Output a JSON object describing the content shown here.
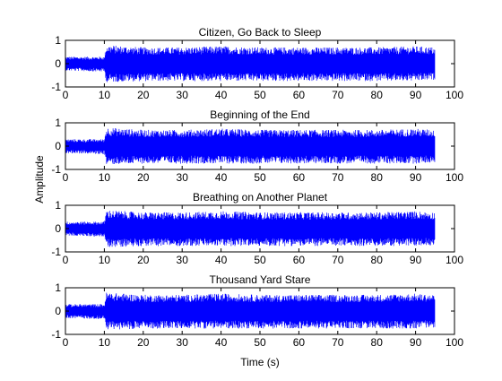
{
  "figure": {
    "xlabel": "Time (s)",
    "ylabel": "Amplitude"
  },
  "chart_data": [
    {
      "type": "line",
      "title": "Citizen, Go Back to Sleep",
      "xlim": [
        0,
        100
      ],
      "ylim": [
        -1,
        1
      ],
      "xticks": [
        0,
        10,
        20,
        30,
        40,
        50,
        60,
        70,
        80,
        90,
        100
      ],
      "yticks": [
        -1,
        0,
        1
      ],
      "color": "#0000ff",
      "grid": false,
      "series": [
        {
          "x": [
            0,
            10,
            10.5,
            20,
            30,
            40,
            50,
            60,
            70,
            80,
            90,
            95
          ],
          "y_max": [
            0.3,
            0.3,
            0.8,
            0.7,
            0.7,
            0.75,
            0.7,
            0.7,
            0.7,
            0.7,
            0.75,
            0.7
          ],
          "y_min": [
            -0.3,
            -0.35,
            -0.8,
            -0.75,
            -0.75,
            -0.75,
            -0.75,
            -0.75,
            -0.75,
            -0.75,
            -0.75,
            -0.7
          ]
        }
      ]
    },
    {
      "type": "line",
      "title": "Beginning of the End",
      "xlim": [
        0,
        100
      ],
      "ylim": [
        -1,
        1
      ],
      "xticks": [
        0,
        10,
        20,
        30,
        40,
        50,
        60,
        70,
        80,
        90,
        100
      ],
      "yticks": [
        -1,
        0,
        1
      ],
      "color": "#0000ff",
      "grid": false,
      "series": [
        {
          "x": [
            0,
            10,
            10.5,
            20,
            30,
            40,
            50,
            60,
            70,
            80,
            90,
            95
          ],
          "y_max": [
            0.3,
            0.3,
            0.8,
            0.7,
            0.7,
            0.75,
            0.7,
            0.7,
            0.7,
            0.7,
            0.75,
            0.7
          ],
          "y_min": [
            -0.3,
            -0.35,
            -0.8,
            -0.75,
            -0.75,
            -0.75,
            -0.75,
            -0.75,
            -0.75,
            -0.75,
            -0.75,
            -0.7
          ]
        }
      ]
    },
    {
      "type": "line",
      "title": "Breathing on Another Planet",
      "xlim": [
        0,
        100
      ],
      "ylim": [
        -1,
        1
      ],
      "xticks": [
        0,
        10,
        20,
        30,
        40,
        50,
        60,
        70,
        80,
        90,
        100
      ],
      "yticks": [
        -1,
        0,
        1
      ],
      "color": "#0000ff",
      "grid": false,
      "series": [
        {
          "x": [
            0,
            10,
            10.5,
            20,
            30,
            40,
            50,
            60,
            70,
            80,
            90,
            95
          ],
          "y_max": [
            0.3,
            0.3,
            0.8,
            0.7,
            0.7,
            0.75,
            0.7,
            0.7,
            0.7,
            0.7,
            0.75,
            0.7
          ],
          "y_min": [
            -0.3,
            -0.35,
            -0.8,
            -0.75,
            -0.75,
            -0.75,
            -0.75,
            -0.75,
            -0.75,
            -0.75,
            -0.75,
            -0.7
          ]
        }
      ]
    },
    {
      "type": "line",
      "title": "Thousand Yard Stare",
      "xlim": [
        0,
        100
      ],
      "ylim": [
        -1,
        1
      ],
      "xticks": [
        0,
        10,
        20,
        30,
        40,
        50,
        60,
        70,
        80,
        90,
        100
      ],
      "yticks": [
        -1,
        0,
        1
      ],
      "color": "#0000ff",
      "grid": false,
      "series": [
        {
          "x": [
            0,
            10,
            10.5,
            20,
            30,
            40,
            50,
            60,
            70,
            80,
            90,
            95
          ],
          "y_max": [
            0.3,
            0.3,
            0.8,
            0.7,
            0.7,
            0.75,
            0.7,
            0.7,
            0.7,
            0.7,
            0.75,
            0.7
          ],
          "y_min": [
            -0.3,
            -0.35,
            -0.8,
            -0.75,
            -0.75,
            -0.75,
            -0.75,
            -0.75,
            -0.75,
            -0.75,
            -0.75,
            -0.7
          ]
        }
      ]
    }
  ]
}
